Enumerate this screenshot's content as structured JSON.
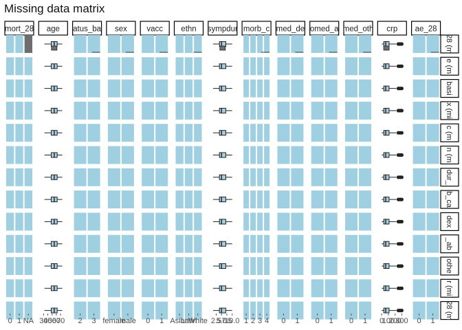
{
  "chart_data": {
    "type": "facet-matrix",
    "title": "Missing data matrix",
    "xlabel": "",
    "ylabel": "",
    "grid": false,
    "bar_color": "#9ed0e1",
    "box_fill": "#a6cee3",
    "missing_color": "#6e6e6e",
    "columns": [
      {
        "name": "mort_28",
        "display": "mort_28",
        "kind": "categorical",
        "ticks": [
          "0",
          "1",
          "NA"
        ]
      },
      {
        "name": "age",
        "display": "age",
        "kind": "box",
        "ticks": [
          "30",
          "40",
          "50",
          "60",
          "70"
        ],
        "range": [
          25,
          80
        ]
      },
      {
        "name": "status_bas",
        "display": "atus_ba",
        "kind": "categorical",
        "ticks": [
          "2",
          "3"
        ]
      },
      {
        "name": "sex",
        "display": "sex",
        "kind": "categorical",
        "ticks": [
          "female",
          "male"
        ]
      },
      {
        "name": "vacc",
        "display": "vacc",
        "kind": "categorical",
        "ticks": [
          "0",
          "1"
        ]
      },
      {
        "name": "ethn",
        "display": "ethn",
        "kind": "categorical",
        "ticks": [
          "Asian",
          "Latin",
          "White"
        ]
      },
      {
        "name": "sympdur",
        "display": "sympdur",
        "kind": "box",
        "ticks": [
          "2.5",
          "5.0",
          "7.5",
          "10.0"
        ],
        "range": [
          0,
          11
        ]
      },
      {
        "name": "comorb_cat",
        "display": "morb_c",
        "kind": "categorical",
        "ticks": [
          "1",
          "2",
          "3",
          "4"
        ]
      },
      {
        "name": "comed_dexa",
        "display": "med_de",
        "kind": "categorical",
        "ticks": [
          "0",
          "1"
        ]
      },
      {
        "name": "comed_ab",
        "display": "omed_a",
        "kind": "categorical",
        "ticks": [
          "0",
          "1"
        ]
      },
      {
        "name": "comed_other",
        "display": "med_oth",
        "kind": "categorical",
        "ticks": [
          "0",
          "1"
        ]
      },
      {
        "name": "crp",
        "display": "crp",
        "kind": "box",
        "ticks": [
          "0",
          "100",
          "200",
          "300"
        ],
        "range": [
          -20,
          330
        ]
      },
      {
        "name": "ae_28",
        "display": "ae_28",
        "kind": "categorical",
        "ticks": [
          "0",
          "1"
        ]
      }
    ],
    "rows": [
      {
        "display": "28 (m"
      },
      {
        "display": "e (m"
      },
      {
        "display": "basi"
      },
      {
        "display": "x (mi"
      },
      {
        "display": "c (m"
      },
      {
        "display": "n (m"
      },
      {
        "display": "dur_"
      },
      {
        "display": "b_ca"
      },
      {
        "display": "dex"
      },
      {
        "display": "_ab"
      },
      {
        "display": "othe"
      },
      {
        "display": "r (mi"
      },
      {
        "display": "28 (m"
      }
    ],
    "boxplots": {
      "age": {
        "min": 32,
        "q1": 48,
        "median": 55,
        "q3": 62,
        "max": 74
      },
      "sympdur": {
        "min": 1,
        "q1": 4,
        "median": 5,
        "q3": 7,
        "max": 10
      },
      "crp": {
        "min": 0,
        "q1": 30,
        "median": 60,
        "q3": 110,
        "max": 220,
        "outliers": [
          250,
          275,
          300
        ]
      }
    }
  }
}
